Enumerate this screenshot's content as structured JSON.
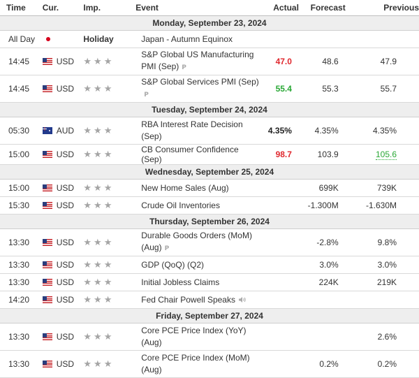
{
  "headers": {
    "time": "Time",
    "currency": "Cur.",
    "importance": "Imp.",
    "event": "Event",
    "actual": "Actual",
    "forecast": "Forecast",
    "previous": "Previous"
  },
  "icons": {
    "star": "star-icon",
    "preliminary": "preliminary-icon",
    "speech": "speaker-icon",
    "flags": [
      "japan-flag-icon",
      "us-flag-icon",
      "australia-flag-icon"
    ]
  },
  "colors": {
    "negative": "#e0282e",
    "positive": "#2aa836",
    "star": "#a5a5a5",
    "date_row_bg": "#eeeeee"
  },
  "days": [
    {
      "date": "Monday, September 23, 2024",
      "events": [
        {
          "time": "All Day",
          "flag": "jp",
          "currency": "",
          "holiday": true,
          "holiday_label": "Holiday",
          "event": "Japan - Autumn Equinox",
          "actual": "",
          "forecast": "",
          "previous": ""
        },
        {
          "time": "14:45",
          "flag": "us",
          "currency": "USD",
          "stars": 3,
          "event": "S&P Global US Manufacturing PMI (Sep)",
          "pre_mark": "P",
          "actual": "47.0",
          "actual_tone": "neg",
          "forecast": "48.6",
          "previous": "47.9"
        },
        {
          "time": "14:45",
          "flag": "us",
          "currency": "USD",
          "stars": 3,
          "event": "S&P Global Services PMI (Sep)",
          "pre_mark": "P",
          "actual": "55.4",
          "actual_tone": "pos",
          "forecast": "55.3",
          "previous": "55.7"
        }
      ]
    },
    {
      "date": "Tuesday, September 24, 2024",
      "events": [
        {
          "time": "05:30",
          "flag": "au",
          "currency": "AUD",
          "stars": 3,
          "event": "RBA Interest Rate Decision (Sep)",
          "actual": "4.35%",
          "actual_tone": "neu",
          "forecast": "4.35%",
          "previous": "4.35%"
        },
        {
          "time": "15:00",
          "flag": "us",
          "currency": "USD",
          "stars": 3,
          "event": "CB Consumer Confidence (Sep)",
          "actual": "98.7",
          "actual_tone": "neg",
          "forecast": "103.9",
          "previous": "105.6",
          "previous_revised": true
        }
      ]
    },
    {
      "date": "Wednesday, September 25, 2024",
      "events": [
        {
          "time": "15:00",
          "flag": "us",
          "currency": "USD",
          "stars": 3,
          "event": "New Home Sales (Aug)",
          "actual": "",
          "forecast": "699K",
          "previous": "739K"
        },
        {
          "time": "15:30",
          "flag": "us",
          "currency": "USD",
          "stars": 3,
          "event": "Crude Oil Inventories",
          "actual": "",
          "forecast": "-1.300M",
          "previous": "-1.630M"
        }
      ]
    },
    {
      "date": "Thursday, September 26, 2024",
      "events": [
        {
          "time": "13:30",
          "flag": "us",
          "currency": "USD",
          "stars": 3,
          "event": "Durable Goods Orders (MoM) (Aug)",
          "pre_mark": "P",
          "actual": "",
          "forecast": "-2.8%",
          "previous": "9.8%"
        },
        {
          "time": "13:30",
          "flag": "us",
          "currency": "USD",
          "stars": 3,
          "event": "GDP (QoQ) (Q2)",
          "actual": "",
          "forecast": "3.0%",
          "previous": "3.0%"
        },
        {
          "time": "13:30",
          "flag": "us",
          "currency": "USD",
          "stars": 3,
          "event": "Initial Jobless Claims",
          "actual": "",
          "forecast": "224K",
          "previous": "219K"
        },
        {
          "time": "14:20",
          "flag": "us",
          "currency": "USD",
          "stars": 3,
          "event": "Fed Chair Powell Speaks",
          "speech": true,
          "actual": "",
          "forecast": "",
          "previous": ""
        }
      ]
    },
    {
      "date": "Friday, September 27, 2024",
      "events": [
        {
          "time": "13:30",
          "flag": "us",
          "currency": "USD",
          "stars": 3,
          "event": "Core PCE Price Index (YoY) (Aug)",
          "actual": "",
          "forecast": "",
          "previous": "2.6%"
        },
        {
          "time": "13:30",
          "flag": "us",
          "currency": "USD",
          "stars": 3,
          "event": "Core PCE Price Index (MoM) (Aug)",
          "actual": "",
          "forecast": "0.2%",
          "previous": "0.2%"
        }
      ]
    }
  ]
}
